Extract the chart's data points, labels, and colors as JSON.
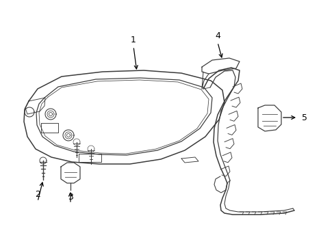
{
  "bg_color": "#ffffff",
  "lc": "#3a3a3a",
  "lw": 1.1,
  "figsize": [
    4.89,
    3.6
  ],
  "dpi": 100
}
